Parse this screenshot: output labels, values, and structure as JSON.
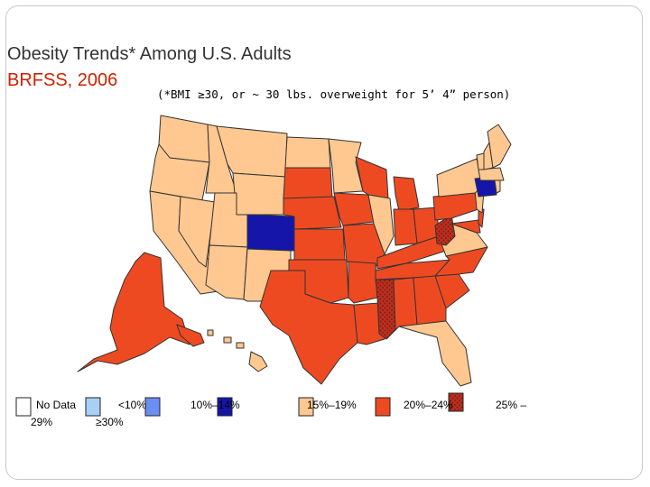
{
  "title": {
    "line1": "Obesity Trends* Among U.S. Adults",
    "line2": "BRFSS, 2006",
    "note": "(*BMI ≥30, or ~ 30 lbs. overweight for 5’ 4” person)"
  },
  "colors": {
    "no_data": "#ffffff",
    "lt10": "#a8d0f5",
    "c10_14": "#6a8ff2",
    "c15_19": "#1515aa",
    "c20_24": "#ffc890",
    "c25_29": "#ee4a22",
    "ge30": "#b83020",
    "state_border": "#333333",
    "hatch": "#8a1a10"
  },
  "legend": {
    "items": [
      {
        "key": "no_data",
        "label_a": "No Data",
        "label_b": "29%"
      },
      {
        "key": "lt10",
        "label": "<10%"
      },
      {
        "key": "c10_14",
        "label": "10%–14%"
      },
      {
        "key": "c15_19",
        "label": "15%–19%"
      },
      {
        "key": "c20_24",
        "label": "20%–24%"
      },
      {
        "key": "c25_29",
        "label": "25% –"
      },
      {
        "key": "ge30",
        "label": "≥30%"
      }
    ]
  },
  "states": [
    {
      "abbr": "WA",
      "cat": "c20_24"
    },
    {
      "abbr": "OR",
      "cat": "c20_24"
    },
    {
      "abbr": "CA",
      "cat": "c20_24"
    },
    {
      "abbr": "NV",
      "cat": "c20_24"
    },
    {
      "abbr": "ID",
      "cat": "c20_24"
    },
    {
      "abbr": "MT",
      "cat": "c20_24"
    },
    {
      "abbr": "WY",
      "cat": "c20_24"
    },
    {
      "abbr": "UT",
      "cat": "c20_24"
    },
    {
      "abbr": "AZ",
      "cat": "c20_24"
    },
    {
      "abbr": "CO",
      "cat": "c15_19"
    },
    {
      "abbr": "NM",
      "cat": "c20_24"
    },
    {
      "abbr": "ND",
      "cat": "c20_24"
    },
    {
      "abbr": "SD",
      "cat": "c25_29"
    },
    {
      "abbr": "NE",
      "cat": "c25_29"
    },
    {
      "abbr": "KS",
      "cat": "c25_29"
    },
    {
      "abbr": "OK",
      "cat": "c25_29"
    },
    {
      "abbr": "TX",
      "cat": "c25_29"
    },
    {
      "abbr": "MN",
      "cat": "c20_24"
    },
    {
      "abbr": "IA",
      "cat": "c25_29"
    },
    {
      "abbr": "MO",
      "cat": "c25_29"
    },
    {
      "abbr": "AR",
      "cat": "c25_29"
    },
    {
      "abbr": "LA",
      "cat": "c25_29"
    },
    {
      "abbr": "WI",
      "cat": "c25_29"
    },
    {
      "abbr": "IL",
      "cat": "c20_24"
    },
    {
      "abbr": "MI",
      "cat": "c25_29"
    },
    {
      "abbr": "IN",
      "cat": "c25_29"
    },
    {
      "abbr": "OH",
      "cat": "c25_29"
    },
    {
      "abbr": "KY",
      "cat": "c25_29"
    },
    {
      "abbr": "TN",
      "cat": "c25_29"
    },
    {
      "abbr": "MS",
      "cat": "ge30"
    },
    {
      "abbr": "AL",
      "cat": "c25_29"
    },
    {
      "abbr": "GA",
      "cat": "c25_29"
    },
    {
      "abbr": "FL",
      "cat": "c20_24"
    },
    {
      "abbr": "SC",
      "cat": "c25_29"
    },
    {
      "abbr": "NC",
      "cat": "c25_29"
    },
    {
      "abbr": "VA",
      "cat": "c20_24"
    },
    {
      "abbr": "WV",
      "cat": "ge30"
    },
    {
      "abbr": "MD",
      "cat": "c25_29"
    },
    {
      "abbr": "DE",
      "cat": "c25_29"
    },
    {
      "abbr": "PA",
      "cat": "c25_29"
    },
    {
      "abbr": "NJ",
      "cat": "c20_24"
    },
    {
      "abbr": "NY",
      "cat": "c20_24"
    },
    {
      "abbr": "CT",
      "cat": "c15_19"
    },
    {
      "abbr": "RI",
      "cat": "c20_24"
    },
    {
      "abbr": "MA",
      "cat": "c20_24"
    },
    {
      "abbr": "VT",
      "cat": "c20_24"
    },
    {
      "abbr": "NH",
      "cat": "c20_24"
    },
    {
      "abbr": "ME",
      "cat": "c20_24"
    },
    {
      "abbr": "AK",
      "cat": "c25_29"
    },
    {
      "abbr": "HI",
      "cat": "c20_24"
    }
  ]
}
